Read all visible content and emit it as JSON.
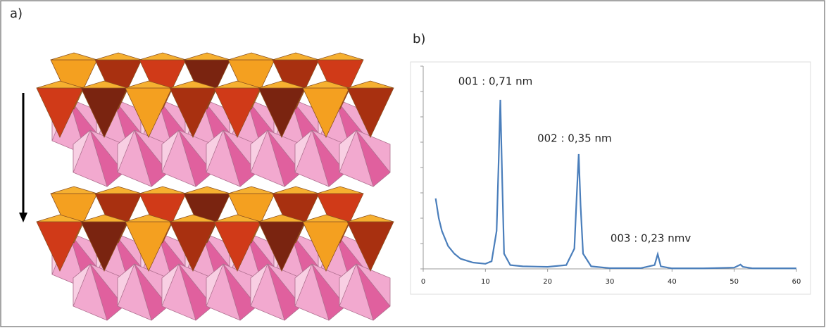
{
  "figure": {
    "panel_label": "a)"
  },
  "chart_data": {
    "type": "line",
    "panel_label": "b)",
    "x": [
      2,
      2.5,
      3,
      4,
      5,
      6,
      8,
      10,
      11,
      11.8,
      12.1,
      12.4,
      12.7,
      13,
      14,
      16,
      20,
      23,
      24.3,
      24.7,
      25,
      25.3,
      25.7,
      27,
      30,
      35,
      37.2,
      37.7,
      38.2,
      40,
      45,
      50,
      50.6,
      51,
      51.4,
      53,
      60
    ],
    "series": [
      {
        "color": "#4a7ebb",
        "values": [
          2.78,
          2.0,
          1.5,
          0.9,
          0.6,
          0.4,
          0.25,
          0.2,
          0.3,
          1.5,
          4.0,
          6.67,
          3.5,
          0.6,
          0.15,
          0.1,
          0.08,
          0.15,
          0.8,
          3.0,
          4.53,
          2.5,
          0.6,
          0.1,
          0.03,
          0.03,
          0.15,
          0.58,
          0.1,
          0.02,
          0.02,
          0.05,
          0.12,
          0.17,
          0.08,
          0.02,
          0.02
        ]
      }
    ],
    "annotations": [
      {
        "text": "001 : 0,71 nm",
        "x": 12.4,
        "y": 6.67
      },
      {
        "text": "002 : 0,35 nm",
        "x": 25,
        "y": 4.53
      },
      {
        "text": "003 : 0,23 nmv",
        "x": 37.7,
        "y": 0.58
      }
    ],
    "xlim": [
      0,
      60
    ],
    "xticks": [
      0,
      10,
      20,
      30,
      40,
      50,
      60
    ],
    "ylim": [
      0,
      8
    ],
    "yticks": [
      0,
      1,
      2,
      3,
      4,
      5,
      6,
      7,
      8
    ]
  }
}
